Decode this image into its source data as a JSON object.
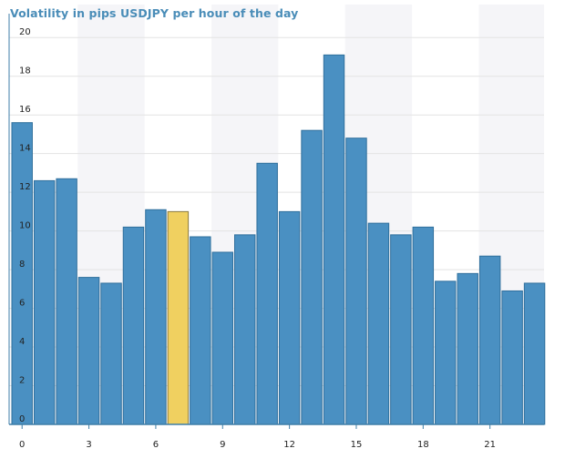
{
  "chart_data": {
    "type": "bar",
    "title": "Volatility in pips USDJPY per hour of the day",
    "xlabel": "",
    "ylabel": "",
    "categories": [
      0,
      1,
      2,
      3,
      4,
      5,
      6,
      7,
      8,
      9,
      10,
      11,
      12,
      13,
      14,
      15,
      16,
      17,
      18,
      19,
      20,
      21,
      22,
      23
    ],
    "values": [
      15.6,
      12.6,
      12.7,
      7.6,
      7.3,
      10.2,
      11.1,
      11.0,
      9.7,
      8.9,
      9.8,
      13.5,
      11.0,
      15.2,
      19.1,
      14.8,
      10.4,
      9.8,
      10.2,
      7.4,
      7.8,
      8.7,
      6.9,
      7.3
    ],
    "highlight_index": 7,
    "ylim": [
      0,
      21
    ],
    "y_ticks": [
      0,
      2,
      4,
      6,
      8,
      10,
      12,
      14,
      16,
      18,
      20
    ],
    "x_ticks": [
      0,
      3,
      6,
      9,
      12,
      15,
      18,
      21
    ],
    "grid": true,
    "colors": {
      "bar": "#4a90c2",
      "bar_stroke": "#2f6f9c",
      "highlight": "#f0d060",
      "highlight_stroke": "#8a7a40",
      "axis": "#3f7fa8",
      "grid": "#e3e3e3",
      "band": "#f5f5f8"
    }
  }
}
